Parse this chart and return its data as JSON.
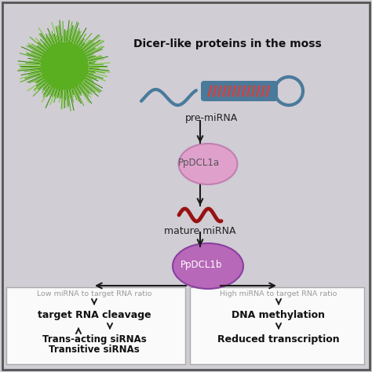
{
  "bg_color": "#d0cdd4",
  "border_color": "#555555",
  "title": "Dicer-like proteins in the moss",
  "title_fontsize": 10,
  "pre_mirna_label": "pre-miRNA",
  "ppdcl1a_label": "PpDCL1a",
  "mature_mirna_label": "mature miRNA",
  "ppdcl1b_label": "PpDCL1b",
  "left_box_header": "Low miRNA to target RNA ratio",
  "left_box_main": "target RNA cleavage",
  "left_box_bottom_1": "Trans-acting siRNAs",
  "left_box_bottom_2": "Transitive siRNAs",
  "right_box_header": "High miRNA to target RNA ratio",
  "right_box_main": "DNA methylation",
  "right_box_bottom": "Reduced transcription",
  "moss_color_dark": "#3a8a10",
  "moss_color_mid": "#5aaf20",
  "moss_color_light": "#7acc35",
  "dcl1a_color": "#dfa0cc",
  "dcl1b_color": "#b868b8",
  "arrow_color": "#1a1a1a",
  "pre_mirna_stem_color": "#4a7a9b",
  "pre_mirna_stripe_color": "#cc4444",
  "mature_mirna_color": "#991111",
  "box_bg": "#fafafa",
  "box_border": "#aaaaaa",
  "label_color_small": "#999999",
  "label_color_main": "#222222",
  "label_color_bold": "#111111"
}
